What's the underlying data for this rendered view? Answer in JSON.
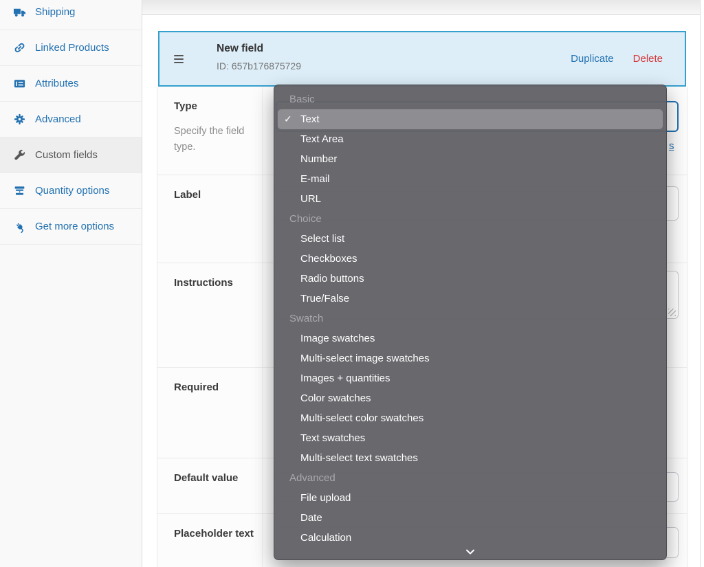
{
  "sidebar": {
    "items": [
      {
        "label": "Shipping",
        "icon": "truck",
        "active": false
      },
      {
        "label": "Linked Products",
        "icon": "link",
        "active": false
      },
      {
        "label": "Attributes",
        "icon": "attributes",
        "active": false
      },
      {
        "label": "Advanced",
        "icon": "gear",
        "active": false
      },
      {
        "label": "Custom fields",
        "icon": "wrench",
        "active": true
      },
      {
        "label": "Quantity options",
        "icon": "quantity",
        "active": false
      },
      {
        "label": "Get more options",
        "icon": "plug",
        "active": false
      }
    ]
  },
  "field_card": {
    "title": "New field",
    "id_line": "ID: 657b176875729",
    "duplicate_label": "Duplicate",
    "delete_label": "Delete"
  },
  "form": {
    "rows": [
      {
        "label": "Type",
        "description": "Specify the field type."
      },
      {
        "label": "Label",
        "description": ""
      },
      {
        "label": "Instructions",
        "description": ""
      },
      {
        "label": "Required",
        "description": ""
      },
      {
        "label": "Default value",
        "description": ""
      },
      {
        "label": "Placeholder text",
        "description": ""
      }
    ],
    "partial_link_text": "s"
  },
  "type_dropdown": {
    "selected": "Text",
    "checkmark": "✓",
    "more_indicator": "chevron-down",
    "groups": [
      {
        "label": "Basic",
        "options": [
          "Text",
          "Text Area",
          "Number",
          "E-mail",
          "URL"
        ]
      },
      {
        "label": "Choice",
        "options": [
          "Select list",
          "Checkboxes",
          "Radio buttons",
          "True/False"
        ]
      },
      {
        "label": "Swatch",
        "options": [
          "Image swatches",
          "Multi-select image swatches",
          "Images + quantities",
          "Color swatches",
          "Multi-select color swatches",
          "Text swatches",
          "Multi-select text swatches"
        ]
      },
      {
        "label": "Advanced",
        "options": [
          "File upload",
          "Date",
          "Calculation"
        ]
      }
    ]
  },
  "colors": {
    "accent_blue": "#2271b1",
    "delete_red": "#d63638",
    "card_background": "#ddeef8",
    "card_border": "#35a0cf",
    "sidebar_active_bg": "#eeeeee",
    "dropdown_bg": "#636368",
    "dropdown_selected_bg": "#8d8d92"
  }
}
